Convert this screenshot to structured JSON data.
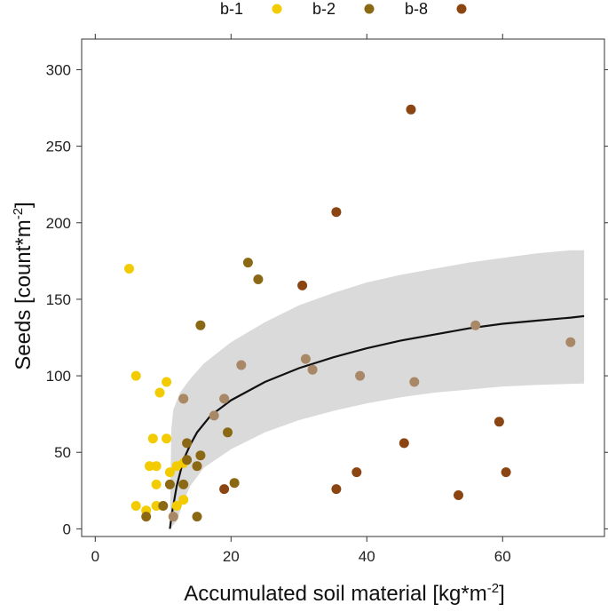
{
  "chart_data": {
    "type": "scatter",
    "xlabel_main": "Accumulated soil material [kg*m",
    "xlabel_sup": "-2",
    "xlabel_end": "]",
    "ylabel_main": "Seeds [count*m",
    "ylabel_sup": "-2",
    "ylabel_end": "]",
    "xlim": [
      -2,
      75
    ],
    "ylim": [
      -5,
      320
    ],
    "x_ticks": [
      0,
      20,
      40,
      60
    ],
    "y_ticks": [
      0,
      50,
      100,
      150,
      200,
      250,
      300
    ],
    "grid": false,
    "legend_position": "top",
    "series": [
      {
        "name": "b-1",
        "color": "#F2CC00",
        "points": [
          {
            "x": 5,
            "y": 170
          },
          {
            "x": 6,
            "y": 100
          },
          {
            "x": 6,
            "y": 15
          },
          {
            "x": 7.5,
            "y": 12
          },
          {
            "x": 8,
            "y": 41
          },
          {
            "x": 8.5,
            "y": 59
          },
          {
            "x": 9,
            "y": 41
          },
          {
            "x": 9,
            "y": 29
          },
          {
            "x": 9,
            "y": 15
          },
          {
            "x": 9.5,
            "y": 89
          },
          {
            "x": 10.5,
            "y": 96
          },
          {
            "x": 10.5,
            "y": 59
          },
          {
            "x": 11,
            "y": 37
          },
          {
            "x": 11.5,
            "y": 8
          },
          {
            "x": 12,
            "y": 15
          },
          {
            "x": 12,
            "y": 41
          },
          {
            "x": 13,
            "y": 19
          },
          {
            "x": 13,
            "y": 85
          },
          {
            "x": 13,
            "y": 43
          }
        ]
      },
      {
        "name": "b-2",
        "color": "#8B6914",
        "points": [
          {
            "x": 7.5,
            "y": 8
          },
          {
            "x": 10,
            "y": 15
          },
          {
            "x": 11,
            "y": 29
          },
          {
            "x": 13,
            "y": 29
          },
          {
            "x": 13.5,
            "y": 56
          },
          {
            "x": 13.5,
            "y": 45
          },
          {
            "x": 15,
            "y": 41
          },
          {
            "x": 15,
            "y": 8
          },
          {
            "x": 15.5,
            "y": 48
          },
          {
            "x": 15.5,
            "y": 133
          },
          {
            "x": 19.5,
            "y": 63
          },
          {
            "x": 20.5,
            "y": 30
          },
          {
            "x": 22.5,
            "y": 174
          },
          {
            "x": 24,
            "y": 163
          }
        ]
      },
      {
        "name": "b-8",
        "color": "#8B4513",
        "points": [
          {
            "x": 19,
            "y": 26
          },
          {
            "x": 30.5,
            "y": 159
          },
          {
            "x": 35.5,
            "y": 207
          },
          {
            "x": 35.5,
            "y": 26
          },
          {
            "x": 38.5,
            "y": 37
          },
          {
            "x": 45.5,
            "y": 56
          },
          {
            "x": 46.5,
            "y": 274
          },
          {
            "x": 53.5,
            "y": 22
          },
          {
            "x": 59.5,
            "y": 70
          },
          {
            "x": 60.5,
            "y": 37
          }
        ]
      },
      {
        "name": "",
        "color": "#A98868",
        "points": [
          {
            "x": 11.5,
            "y": 8
          },
          {
            "x": 13,
            "y": 85
          },
          {
            "x": 17.5,
            "y": 74
          },
          {
            "x": 19,
            "y": 85
          },
          {
            "x": 21.5,
            "y": 107
          },
          {
            "x": 31,
            "y": 111
          },
          {
            "x": 32,
            "y": 104
          },
          {
            "x": 39,
            "y": 100
          },
          {
            "x": 47,
            "y": 96
          },
          {
            "x": 56,
            "y": 133
          },
          {
            "x": 70,
            "y": 122
          }
        ]
      }
    ],
    "fit": {
      "color": "#111111",
      "band_color": "#DADADA",
      "line": [
        {
          "x": 11,
          "y": 0
        },
        {
          "x": 11.3,
          "y": 10
        },
        {
          "x": 12,
          "y": 28
        },
        {
          "x": 13,
          "y": 45
        },
        {
          "x": 14,
          "y": 55
        },
        {
          "x": 15,
          "y": 63
        },
        {
          "x": 17,
          "y": 74
        },
        {
          "x": 20,
          "y": 84
        },
        {
          "x": 25,
          "y": 96
        },
        {
          "x": 30,
          "y": 105
        },
        {
          "x": 35,
          "y": 112
        },
        {
          "x": 40,
          "y": 118
        },
        {
          "x": 45,
          "y": 123
        },
        {
          "x": 50,
          "y": 127
        },
        {
          "x": 55,
          "y": 131
        },
        {
          "x": 60,
          "y": 134
        },
        {
          "x": 65,
          "y": 136
        },
        {
          "x": 70,
          "y": 138
        },
        {
          "x": 72,
          "y": 139
        }
      ],
      "upper": [
        {
          "x": 11,
          "y": 0
        },
        {
          "x": 11.2,
          "y": 65
        },
        {
          "x": 11.5,
          "y": 78
        },
        {
          "x": 12.5,
          "y": 89
        },
        {
          "x": 14,
          "y": 98
        },
        {
          "x": 16,
          "y": 108
        },
        {
          "x": 20,
          "y": 122
        },
        {
          "x": 25,
          "y": 135
        },
        {
          "x": 30,
          "y": 146
        },
        {
          "x": 35,
          "y": 154
        },
        {
          "x": 40,
          "y": 161
        },
        {
          "x": 45,
          "y": 166
        },
        {
          "x": 50,
          "y": 170
        },
        {
          "x": 55,
          "y": 174
        },
        {
          "x": 60,
          "y": 177
        },
        {
          "x": 65,
          "y": 180
        },
        {
          "x": 70,
          "y": 182
        },
        {
          "x": 72,
          "y": 182
        }
      ],
      "lower": [
        {
          "x": 11,
          "y": 0
        },
        {
          "x": 12,
          "y": 5
        },
        {
          "x": 13,
          "y": 18
        },
        {
          "x": 14,
          "y": 28
        },
        {
          "x": 16,
          "y": 40
        },
        {
          "x": 20,
          "y": 52
        },
        {
          "x": 25,
          "y": 63
        },
        {
          "x": 30,
          "y": 71
        },
        {
          "x": 35,
          "y": 77
        },
        {
          "x": 40,
          "y": 82
        },
        {
          "x": 45,
          "y": 86
        },
        {
          "x": 50,
          "y": 89
        },
        {
          "x": 55,
          "y": 91
        },
        {
          "x": 60,
          "y": 93
        },
        {
          "x": 65,
          "y": 94
        },
        {
          "x": 72,
          "y": 95
        }
      ]
    }
  }
}
